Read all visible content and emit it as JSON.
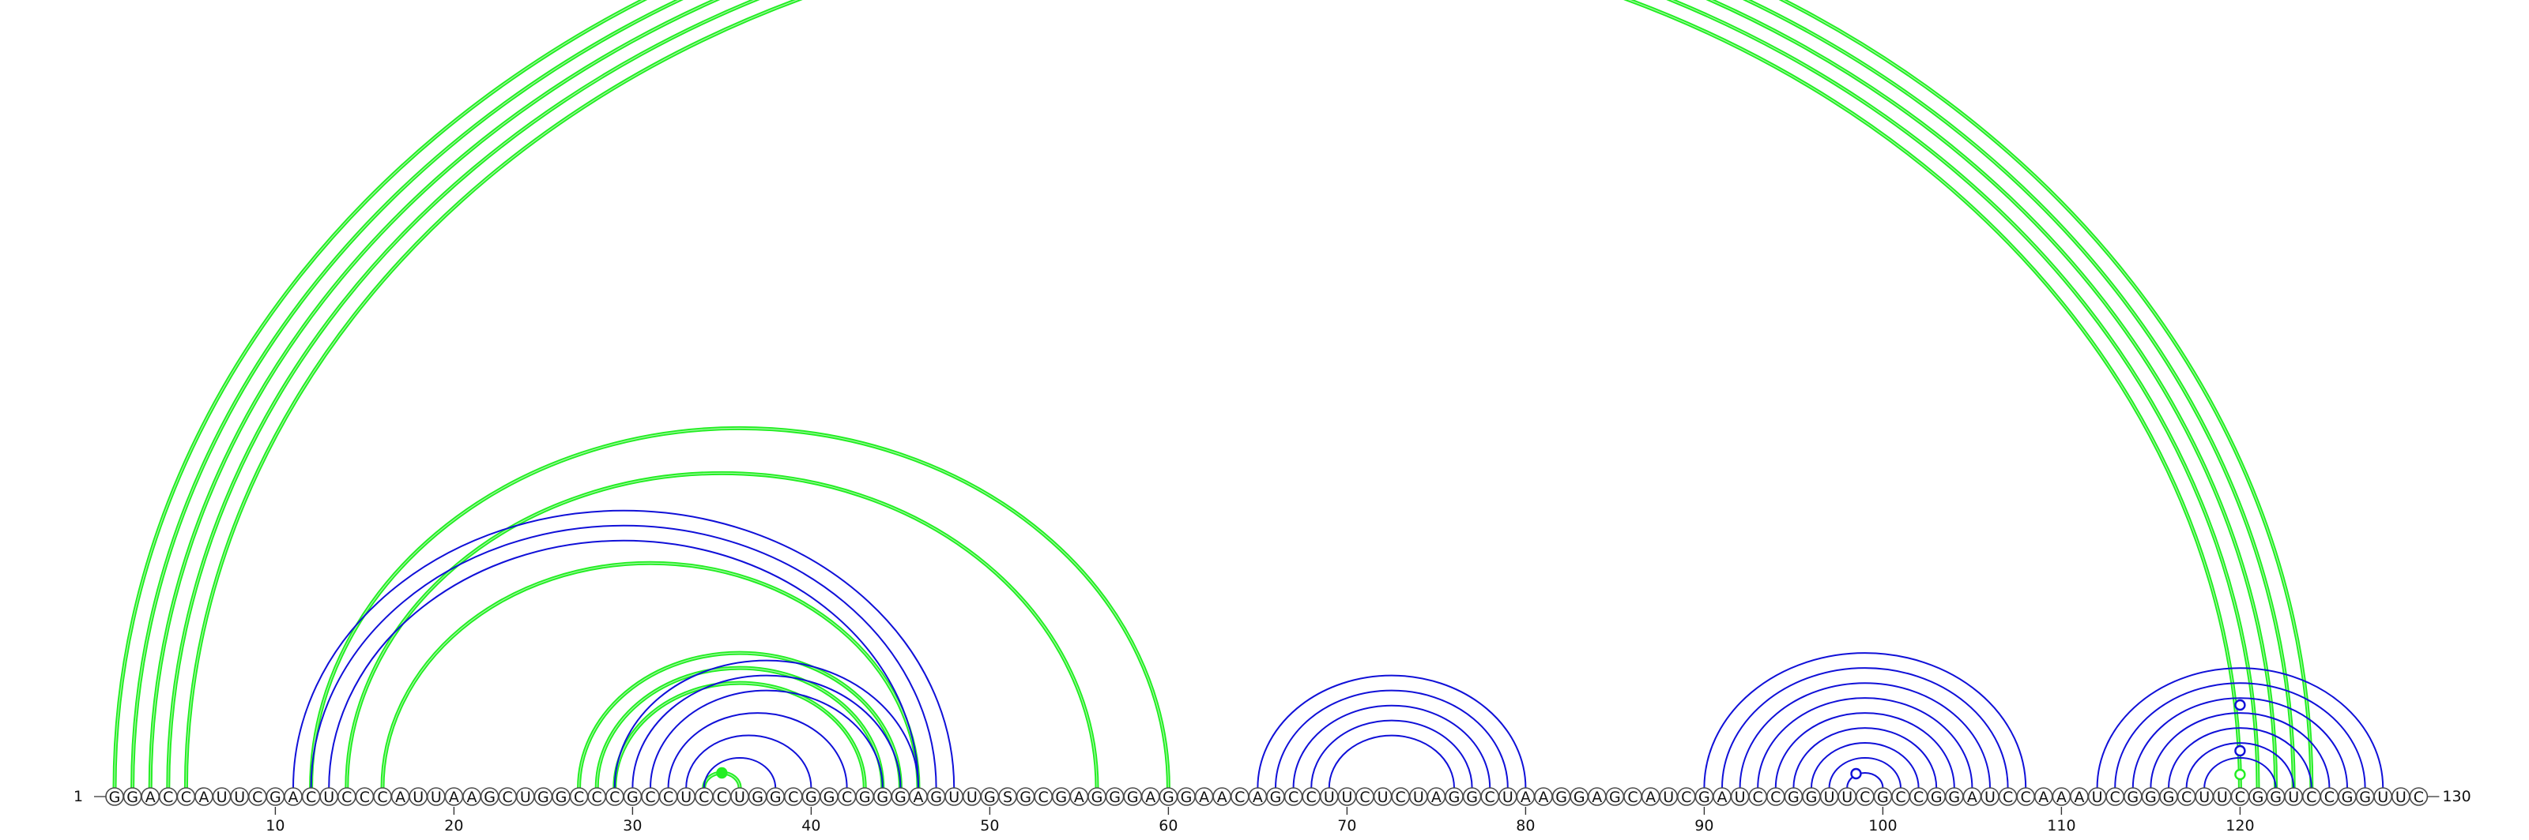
{
  "sequence": "GGACCAUUCGACUCCCAUUAAGCUGGCCCGCCUCCUGGCGGCGGGAGUUGSGCGAGGGAGGAACAGCCUUCUCUAGGCUAAGGAGCAUCGAUCCGGUUCGCCGGAUCCAAAUCGGGCUUCGGUCCGGUUC",
  "start_label": "1",
  "end_label": "130",
  "tick_labels": [
    "10",
    "20",
    "30",
    "40",
    "50",
    "60",
    "70",
    "80",
    "90",
    "100",
    "110",
    "120"
  ],
  "colors": {
    "green_arcs": "#22ee22",
    "blue_arcs": "#1010d8",
    "nucleotide_outline": "#4a4a4a",
    "background": "#ffffff"
  },
  "arc_colors_meaning": {
    "green": "green-arc-set",
    "blue": "blue-arc-set"
  },
  "green_pairs": [
    [
      1,
      124
    ],
    [
      2,
      123
    ],
    [
      3,
      122
    ],
    [
      4,
      121
    ],
    [
      5,
      120
    ],
    [
      12,
      60
    ],
    [
      14,
      56
    ],
    [
      16,
      46
    ],
    [
      27,
      45
    ],
    [
      28,
      44
    ],
    [
      29,
      43
    ],
    [
      34,
      36
    ]
  ],
  "blue_pairs": [
    [
      11,
      48
    ],
    [
      12,
      47
    ],
    [
      13,
      46
    ],
    [
      29,
      46
    ],
    [
      30,
      45
    ],
    [
      31,
      44
    ],
    [
      32,
      42
    ],
    [
      33,
      40
    ],
    [
      34,
      38
    ],
    [
      65,
      80
    ],
    [
      66,
      79
    ],
    [
      67,
      78
    ],
    [
      68,
      77
    ],
    [
      69,
      76
    ],
    [
      90,
      108
    ],
    [
      91,
      107
    ],
    [
      92,
      106
    ],
    [
      93,
      105
    ],
    [
      94,
      104
    ],
    [
      95,
      103
    ],
    [
      96,
      102
    ],
    [
      97,
      101
    ],
    [
      98,
      100
    ],
    [
      112,
      128
    ],
    [
      113,
      127
    ],
    [
      114,
      126
    ],
    [
      115,
      125
    ],
    [
      116,
      124
    ],
    [
      117,
      123
    ],
    [
      118,
      122
    ]
  ],
  "markers": [
    {
      "pos": 35,
      "color": "#22ee22",
      "filled": true
    },
    {
      "pos": 98.5,
      "color": "#1010d8",
      "filled": false
    },
    {
      "pos": 120,
      "color": "#1010d8",
      "filled": false,
      "level": 2
    },
    {
      "pos": 120,
      "color": "#1010d8",
      "filled": false,
      "level": 3
    },
    {
      "pos": 120,
      "color": "#22ee22",
      "filled": false,
      "level": 1
    }
  ]
}
